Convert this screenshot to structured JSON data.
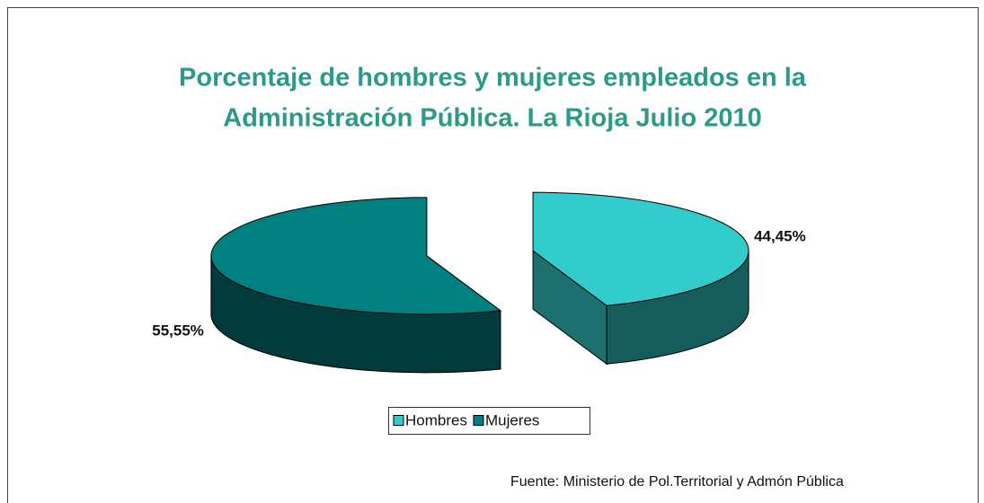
{
  "chart_data": {
    "type": "pie",
    "title": [
      "Porcentaje de hombres y mujeres empleados en la",
      "Administración Pública. La Rioja Julio 2010"
    ],
    "categories": [
      "Hombres",
      "Mujeres"
    ],
    "values": [
      44.45,
      55.55
    ],
    "value_labels": [
      "44,45%",
      "55,55%"
    ],
    "colors": [
      "#33cccc",
      "#008080"
    ],
    "source": "Fuente: Ministerio de Pol.Territorial y Admón Pública"
  }
}
